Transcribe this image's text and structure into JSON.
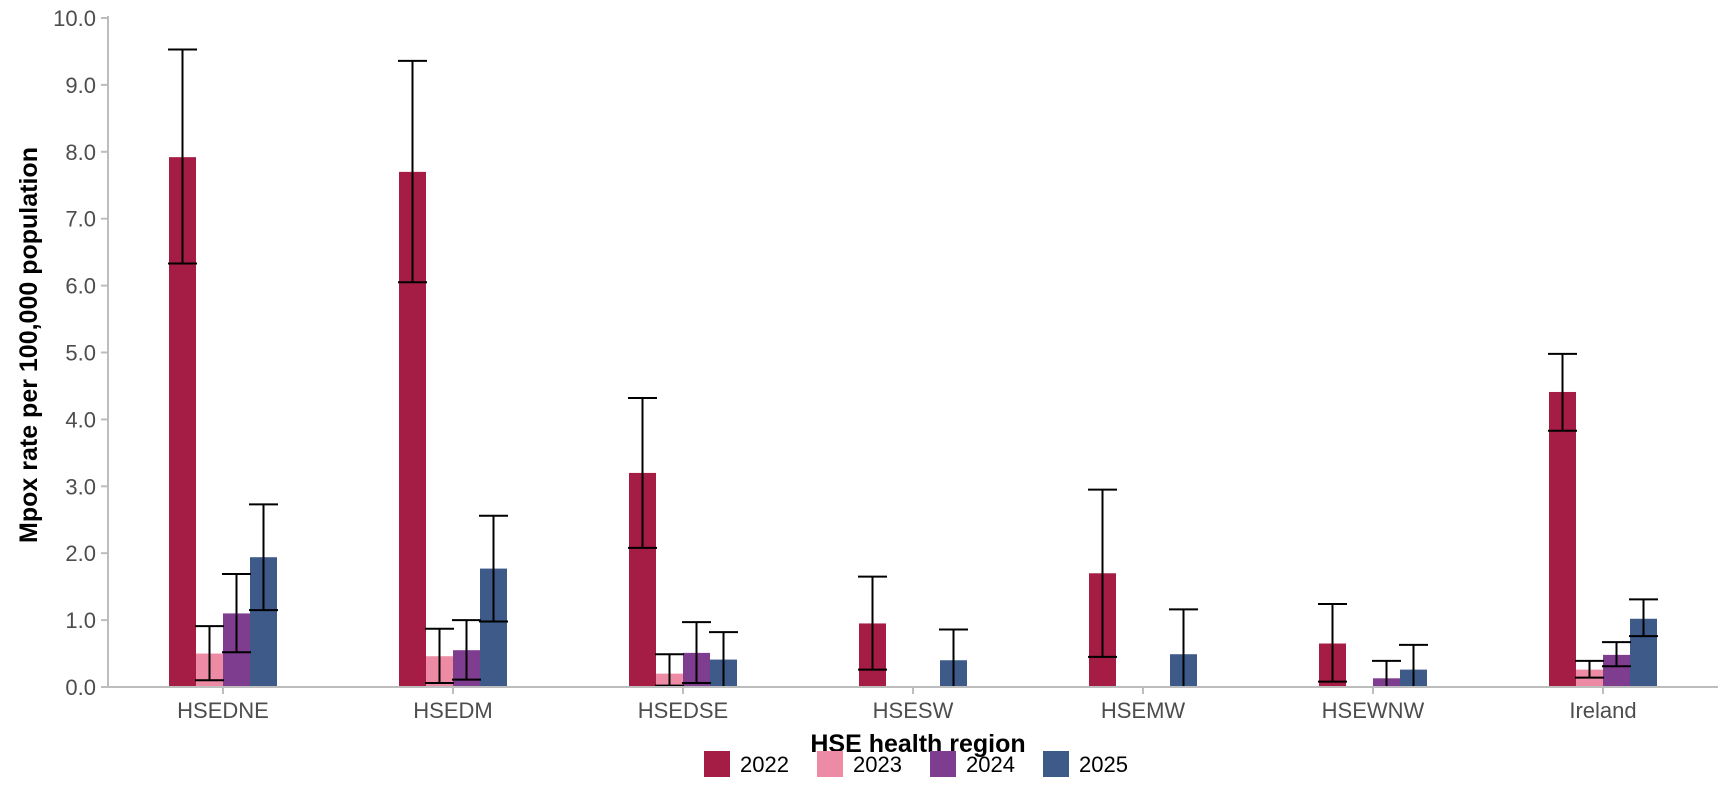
{
  "chart_data": {
    "type": "bar",
    "title": "",
    "xlabel": "HSE health region",
    "ylabel": "Mpox rate per 100,000 population",
    "ylim": [
      0,
      10
    ],
    "yticks": [
      "0.0",
      "1.0",
      "2.0",
      "3.0",
      "4.0",
      "5.0",
      "6.0",
      "7.0",
      "8.0",
      "9.0",
      "10.0"
    ],
    "grid": false,
    "legend_position": "bottom",
    "error_bars": true,
    "categories": [
      "HSEDNE",
      "HSEDM",
      "HSEDSE",
      "HSESW",
      "HSEMW",
      "HSEWNW",
      "Ireland"
    ],
    "series": [
      {
        "name": "2022",
        "color": "#A51C44",
        "values": [
          7.92,
          7.7,
          3.2,
          0.95,
          1.7,
          0.65,
          4.41
        ],
        "ci_lower": [
          6.33,
          6.05,
          2.08,
          0.26,
          0.45,
          0.08,
          3.83
        ],
        "ci_upper": [
          9.53,
          9.36,
          4.32,
          1.65,
          2.95,
          1.24,
          4.98
        ]
      },
      {
        "name": "2023",
        "color": "#EC8BA3",
        "values": [
          0.5,
          0.46,
          0.2,
          0.0,
          0.0,
          0.0,
          0.26
        ],
        "ci_lower": [
          0.1,
          0.06,
          0.02,
          0.0,
          0.0,
          0.0,
          0.14
        ],
        "ci_upper": [
          0.91,
          0.87,
          0.49,
          0.0,
          0.0,
          0.0,
          0.39
        ]
      },
      {
        "name": "2024",
        "color": "#7E3D8E",
        "values": [
          1.1,
          0.55,
          0.51,
          0.0,
          0.0,
          0.13,
          0.48
        ],
        "ci_lower": [
          0.52,
          0.11,
          0.06,
          0.0,
          0.0,
          0.0,
          0.31
        ],
        "ci_upper": [
          1.69,
          1.0,
          0.97,
          0.0,
          0.0,
          0.39,
          0.67
        ]
      },
      {
        "name": "2025",
        "color": "#3D5A88",
        "values": [
          1.94,
          1.77,
          0.41,
          0.4,
          0.49,
          0.26,
          1.02
        ],
        "ci_lower": [
          1.15,
          0.98,
          0.0,
          0.0,
          0.0,
          0.0,
          0.76
        ],
        "ci_upper": [
          2.73,
          2.56,
          0.82,
          0.86,
          1.16,
          0.63,
          1.31
        ]
      }
    ]
  }
}
